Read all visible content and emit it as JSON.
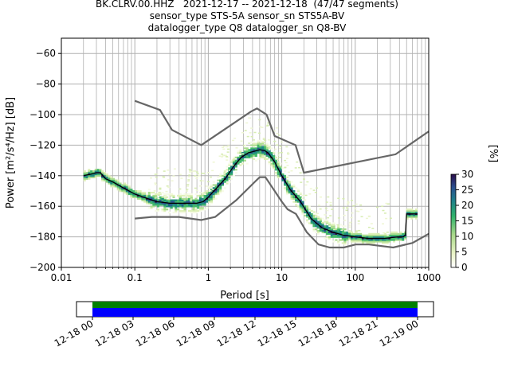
{
  "chart_data": {
    "type": "heatmap",
    "title_lines": [
      "BK.CLRV.00.HHZ   2021-12-17 -- 2021-12-18  (47/47 segments)",
      "sensor_type STS-5A sensor_sn STS5A-BV",
      "datalogger_type Q8 datalogger_sn Q8-BV"
    ],
    "xlabel": "Period [s]",
    "ylabel": "Power [m²/s⁴/Hz] [dB]",
    "xscale": "log",
    "xlim": [
      0.01,
      1000
    ],
    "ylim": [
      -200,
      -50
    ],
    "x_ticks": [
      {
        "value": 0.01,
        "label": "0.01"
      },
      {
        "value": 0.1,
        "label": "0.1"
      },
      {
        "value": 1,
        "label": "1"
      },
      {
        "value": 10,
        "label": "10"
      },
      {
        "value": 100,
        "label": "100"
      },
      {
        "value": 1000,
        "label": "1000"
      }
    ],
    "y_ticks": [
      {
        "value": -60,
        "label": "−60"
      },
      {
        "value": -80,
        "label": "−80"
      },
      {
        "value": -100,
        "label": "−100"
      },
      {
        "value": -120,
        "label": "−120"
      },
      {
        "value": -140,
        "label": "−140"
      },
      {
        "value": -160,
        "label": "−160"
      },
      {
        "value": -180,
        "label": "−180"
      },
      {
        "value": -200,
        "label": "−200"
      }
    ],
    "grid": true,
    "noise_model_high": [
      [
        0.1,
        -91
      ],
      [
        0.22,
        -97
      ],
      [
        0.32,
        -110
      ],
      [
        0.8,
        -120
      ],
      [
        3.8,
        -98
      ],
      [
        4.6,
        -96
      ],
      [
        6.2,
        -100
      ],
      [
        8,
        -114
      ],
      [
        15.4,
        -120
      ],
      [
        20,
        -138
      ],
      [
        354,
        -126
      ],
      [
        1000,
        -111
      ]
    ],
    "noise_model_low": [
      [
        0.1,
        -168
      ],
      [
        0.17,
        -167
      ],
      [
        0.4,
        -167
      ],
      [
        0.8,
        -169
      ],
      [
        1.24,
        -167
      ],
      [
        2.4,
        -156
      ],
      [
        4.3,
        -144
      ],
      [
        5,
        -141
      ],
      [
        6,
        -141
      ],
      [
        10,
        -157
      ],
      [
        12,
        -162
      ],
      [
        15.6,
        -165
      ],
      [
        21.9,
        -177
      ],
      [
        31.6,
        -185
      ],
      [
        45,
        -187
      ],
      [
        70,
        -187
      ],
      [
        101,
        -185
      ],
      [
        154,
        -185
      ],
      [
        328,
        -187
      ],
      [
        600,
        -184
      ],
      [
        1000,
        -178
      ]
    ],
    "median": [
      [
        0.02,
        -140
      ],
      [
        0.025,
        -139
      ],
      [
        0.03,
        -138
      ],
      [
        0.034,
        -138
      ],
      [
        0.04,
        -142
      ],
      [
        0.05,
        -144
      ],
      [
        0.07,
        -148
      ],
      [
        0.1,
        -152
      ],
      [
        0.15,
        -155
      ],
      [
        0.2,
        -157
      ],
      [
        0.3,
        -158
      ],
      [
        0.5,
        -158
      ],
      [
        0.7,
        -158
      ],
      [
        0.85,
        -157
      ],
      [
        1,
        -154
      ],
      [
        1.3,
        -148
      ],
      [
        1.7,
        -142
      ],
      [
        2.2,
        -134
      ],
      [
        2.8,
        -128
      ],
      [
        3.5,
        -125
      ],
      [
        4.2,
        -124
      ],
      [
        5,
        -123
      ],
      [
        5.8,
        -123.5
      ],
      [
        6.5,
        -125
      ],
      [
        8,
        -131
      ],
      [
        10,
        -140
      ],
      [
        13,
        -149
      ],
      [
        18,
        -157
      ],
      [
        25,
        -168
      ],
      [
        35,
        -174
      ],
      [
        50,
        -177
      ],
      [
        70,
        -179
      ],
      [
        100,
        -180
      ],
      [
        150,
        -181
      ],
      [
        250,
        -181
      ],
      [
        380,
        -180
      ],
      [
        450,
        -180
      ],
      [
        480,
        -179
      ],
      [
        500,
        -165
      ],
      [
        700,
        -165
      ]
    ],
    "colorbar": {
      "label": "[%]",
      "min": 0,
      "max": 30,
      "ticks": [
        {
          "value": 0,
          "label": "0"
        },
        {
          "value": 5,
          "label": "5"
        },
        {
          "value": 10,
          "label": "10"
        },
        {
          "value": 15,
          "label": "15"
        },
        {
          "value": 20,
          "label": "20"
        },
        {
          "value": 25,
          "label": "25"
        },
        {
          "value": 30,
          "label": "30"
        }
      ]
    },
    "timeline": {
      "ticks": [
        "12-18 00",
        "12-18 03",
        "12-18 06",
        "12-18 09",
        "12-18 12",
        "12-18 15",
        "12-18 18",
        "12-18 21",
        "12-19 00"
      ]
    }
  }
}
